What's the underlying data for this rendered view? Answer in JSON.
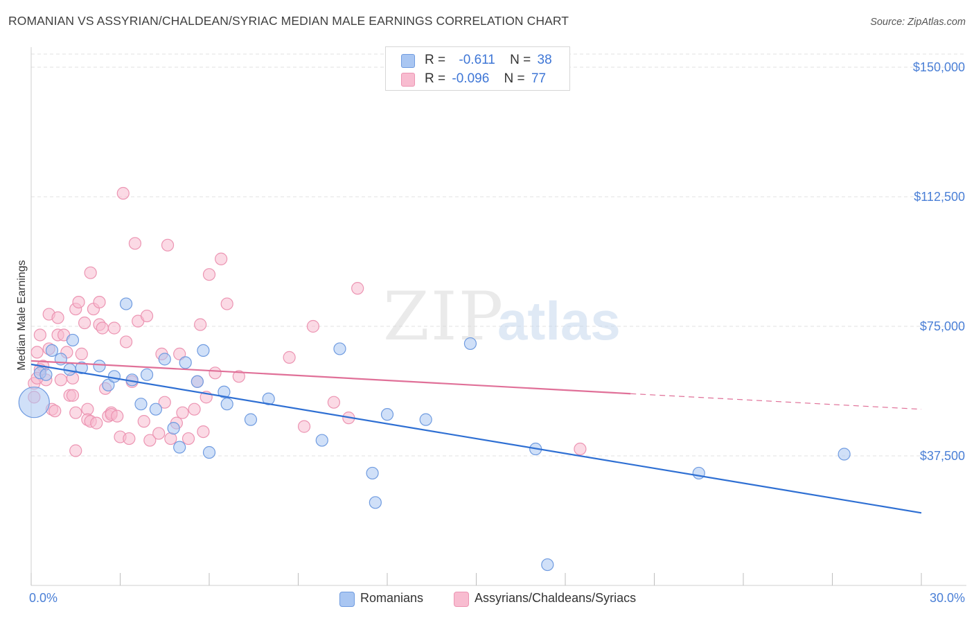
{
  "header": {
    "title": "ROMANIAN VS ASSYRIAN/CHALDEAN/SYRIAC MEDIAN MALE EARNINGS CORRELATION CHART",
    "source": "Source: ZipAtlas.com"
  },
  "watermark": {
    "zip": "ZIP",
    "atlas": "atlas"
  },
  "legend": {
    "rows": [
      {
        "r_label": "R =",
        "r_value": "-0.611",
        "n_label": "N =",
        "n_value": "38"
      },
      {
        "r_label": "R =",
        "r_value": "-0.096",
        "n_label": "N =",
        "n_value": "77"
      }
    ]
  },
  "chart_data": {
    "type": "scatter",
    "title": "ROMANIAN VS ASSYRIAN/CHALDEAN/SYRIAC MEDIAN MALE EARNINGS CORRELATION CHART",
    "xlabel": "",
    "ylabel": "Median Male Earnings",
    "xlim": [
      0,
      30
    ],
    "ylim": [
      0,
      155000
    ],
    "x_tick_labels": [
      "0.0%",
      "30.0%"
    ],
    "y_ticks": [
      {
        "value": 37500,
        "label": "$37,500"
      },
      {
        "value": 75000,
        "label": "$75,000"
      },
      {
        "value": 112500,
        "label": "$112,500"
      },
      {
        "value": 150000,
        "label": "$150,000"
      }
    ],
    "grid": "horizontal dashed",
    "legend_position": "top-center",
    "colors": {
      "romanians_fill": "#a9c6f2",
      "romanians_stroke": "#6f9be0",
      "romanians_line": "#2e6fd3",
      "assyrians_fill": "#f8bcd0",
      "assyrians_stroke": "#ec94b2",
      "assyrians_line": "#e07098"
    },
    "series": [
      {
        "name": "Romanians",
        "r": -0.611,
        "n": 38,
        "trend": {
          "x": [
            0,
            30
          ],
          "y": [
            64000,
            21000
          ]
        },
        "points": [
          {
            "x": 0.1,
            "y": 53000,
            "big": true
          },
          {
            "x": 0.3,
            "y": 61500
          },
          {
            "x": 1.3,
            "y": 62500
          },
          {
            "x": 0.7,
            "y": 68000
          },
          {
            "x": 1.0,
            "y": 65500
          },
          {
            "x": 1.4,
            "y": 71000
          },
          {
            "x": 1.7,
            "y": 63000
          },
          {
            "x": 2.3,
            "y": 63500
          },
          {
            "x": 2.6,
            "y": 58000
          },
          {
            "x": 2.8,
            "y": 60500
          },
          {
            "x": 3.2,
            "y": 81500
          },
          {
            "x": 3.4,
            "y": 59500
          },
          {
            "x": 3.7,
            "y": 52500
          },
          {
            "x": 3.9,
            "y": 61000
          },
          {
            "x": 4.2,
            "y": 51000
          },
          {
            "x": 4.5,
            "y": 65500
          },
          {
            "x": 4.8,
            "y": 45500
          },
          {
            "x": 5.0,
            "y": 40000
          },
          {
            "x": 5.2,
            "y": 64500
          },
          {
            "x": 5.6,
            "y": 59000
          },
          {
            "x": 5.8,
            "y": 68000
          },
          {
            "x": 6.0,
            "y": 38500
          },
          {
            "x": 6.5,
            "y": 56000
          },
          {
            "x": 6.6,
            "y": 52500
          },
          {
            "x": 7.4,
            "y": 48000
          },
          {
            "x": 8.0,
            "y": 54000
          },
          {
            "x": 9.8,
            "y": 42000
          },
          {
            "x": 10.4,
            "y": 68500
          },
          {
            "x": 11.5,
            "y": 32500
          },
          {
            "x": 11.6,
            "y": 24000
          },
          {
            "x": 12.0,
            "y": 49500
          },
          {
            "x": 13.3,
            "y": 48000
          },
          {
            "x": 14.8,
            "y": 70000
          },
          {
            "x": 17.0,
            "y": 39500
          },
          {
            "x": 17.4,
            "y": 6000
          },
          {
            "x": 22.5,
            "y": 32500
          },
          {
            "x": 27.4,
            "y": 38000
          },
          {
            "x": 0.5,
            "y": 61000
          }
        ]
      },
      {
        "name": "Assyrians/Chaldeans/Syriacs",
        "r": -0.096,
        "n": 77,
        "trend": {
          "x": [
            0,
            20.2
          ],
          "y": [
            65000,
            55500
          ]
        },
        "trend_dashed": {
          "x": [
            20.2,
            30
          ],
          "y": [
            55500,
            51000
          ]
        },
        "points": [
          {
            "x": 0.1,
            "y": 58500
          },
          {
            "x": 0.2,
            "y": 67500
          },
          {
            "x": 0.3,
            "y": 72500
          },
          {
            "x": 0.4,
            "y": 63500
          },
          {
            "x": 0.5,
            "y": 59500
          },
          {
            "x": 0.6,
            "y": 78500
          },
          {
            "x": 0.6,
            "y": 68500
          },
          {
            "x": 0.7,
            "y": 51000
          },
          {
            "x": 0.8,
            "y": 50500
          },
          {
            "x": 0.9,
            "y": 72500
          },
          {
            "x": 0.9,
            "y": 77500
          },
          {
            "x": 1.0,
            "y": 59500
          },
          {
            "x": 1.1,
            "y": 72500
          },
          {
            "x": 1.2,
            "y": 67500
          },
          {
            "x": 1.3,
            "y": 55000
          },
          {
            "x": 1.4,
            "y": 55000
          },
          {
            "x": 1.4,
            "y": 60000
          },
          {
            "x": 1.5,
            "y": 50000
          },
          {
            "x": 1.5,
            "y": 80000
          },
          {
            "x": 1.5,
            "y": 39000
          },
          {
            "x": 1.6,
            "y": 82000
          },
          {
            "x": 1.7,
            "y": 67000
          },
          {
            "x": 1.8,
            "y": 76000
          },
          {
            "x": 1.9,
            "y": 51000
          },
          {
            "x": 1.9,
            "y": 48000
          },
          {
            "x": 2.0,
            "y": 47500
          },
          {
            "x": 2.0,
            "y": 90500
          },
          {
            "x": 2.1,
            "y": 80000
          },
          {
            "x": 2.2,
            "y": 47000
          },
          {
            "x": 2.3,
            "y": 82000
          },
          {
            "x": 2.3,
            "y": 75500
          },
          {
            "x": 2.4,
            "y": 74500
          },
          {
            "x": 2.5,
            "y": 57000
          },
          {
            "x": 2.6,
            "y": 49000
          },
          {
            "x": 2.7,
            "y": 50000
          },
          {
            "x": 2.7,
            "y": 49500
          },
          {
            "x": 2.8,
            "y": 74500
          },
          {
            "x": 2.9,
            "y": 49000
          },
          {
            "x": 3.0,
            "y": 43000
          },
          {
            "x": 3.1,
            "y": 113500
          },
          {
            "x": 3.2,
            "y": 70500
          },
          {
            "x": 3.3,
            "y": 42500
          },
          {
            "x": 3.4,
            "y": 59000
          },
          {
            "x": 3.5,
            "y": 99000
          },
          {
            "x": 3.6,
            "y": 76500
          },
          {
            "x": 3.8,
            "y": 47500
          },
          {
            "x": 3.9,
            "y": 78000
          },
          {
            "x": 4.0,
            "y": 42000
          },
          {
            "x": 4.3,
            "y": 44000
          },
          {
            "x": 4.4,
            "y": 67000
          },
          {
            "x": 4.5,
            "y": 53000
          },
          {
            "x": 4.6,
            "y": 98500
          },
          {
            "x": 4.7,
            "y": 42500
          },
          {
            "x": 4.9,
            "y": 47000
          },
          {
            "x": 5.0,
            "y": 67000
          },
          {
            "x": 5.1,
            "y": 50000
          },
          {
            "x": 5.3,
            "y": 42500
          },
          {
            "x": 5.5,
            "y": 51000
          },
          {
            "x": 5.6,
            "y": 59000
          },
          {
            "x": 5.7,
            "y": 75500
          },
          {
            "x": 5.8,
            "y": 44500
          },
          {
            "x": 5.9,
            "y": 54500
          },
          {
            "x": 6.0,
            "y": 90000
          },
          {
            "x": 6.2,
            "y": 61500
          },
          {
            "x": 6.4,
            "y": 94500
          },
          {
            "x": 6.6,
            "y": 81500
          },
          {
            "x": 7.0,
            "y": 60500
          },
          {
            "x": 8.7,
            "y": 66000
          },
          {
            "x": 9.2,
            "y": 46000
          },
          {
            "x": 9.5,
            "y": 75000
          },
          {
            "x": 10.2,
            "y": 53000
          },
          {
            "x": 10.7,
            "y": 48500
          },
          {
            "x": 11.0,
            "y": 86000
          },
          {
            "x": 18.5,
            "y": 39500
          },
          {
            "x": 0.3,
            "y": 62500
          },
          {
            "x": 0.2,
            "y": 60000
          },
          {
            "x": 0.1,
            "y": 54500
          }
        ]
      }
    ],
    "bottom_legend": [
      "Romanians",
      "Assyrians/Chaldeans/Syriacs"
    ]
  }
}
